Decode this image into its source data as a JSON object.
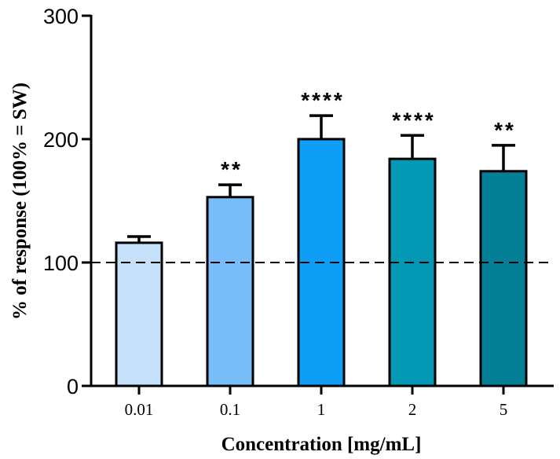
{
  "chart_data": {
    "type": "bar",
    "xlabel": "Concentration [mg/mL]",
    "ylabel": "% of response (100% = SW)",
    "ylim": [
      0,
      300
    ],
    "yticks": [
      "0",
      "100",
      "200",
      "300"
    ],
    "categories": [
      "0.01",
      "0.1",
      "1",
      "2",
      "5"
    ],
    "values": [
      116,
      153,
      200,
      184,
      174
    ],
    "errors": [
      5,
      10,
      19,
      19,
      21
    ],
    "significance": [
      "",
      "**",
      "****",
      "****",
      "**"
    ],
    "colors": [
      "#c4e0fb",
      "#78bcfa",
      "#0f9ef5",
      "#0399b5",
      "#057f96"
    ],
    "reference_line": {
      "value": 100,
      "style": "dashed"
    },
    "grid": false,
    "legend": "none"
  }
}
